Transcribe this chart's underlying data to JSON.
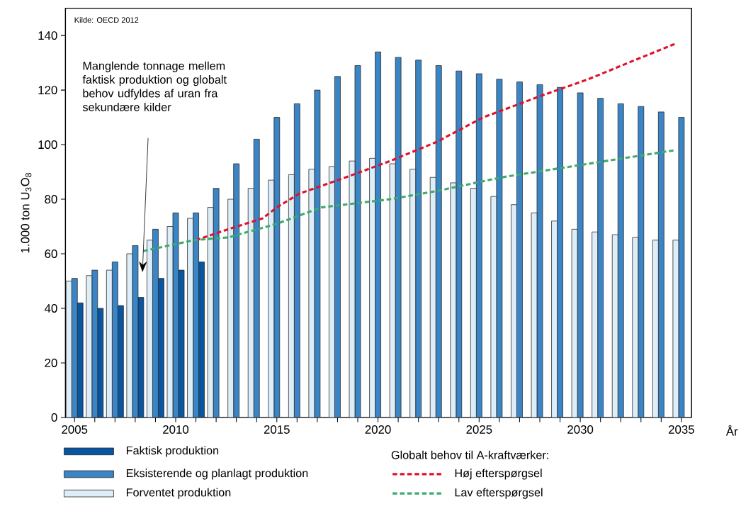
{
  "chart_data": {
    "type": "bar",
    "ylabel": "1.000 ton U$_{3}$O$_{8}$",
    "xlabel": "År",
    "legend_title": "Globalt behov til A-kraftværker:",
    "legend": "bottom",
    "x": [
      2005,
      2006,
      2007,
      2008,
      2009,
      2010,
      2011,
      2012,
      2013,
      2014,
      2015,
      2016,
      2017,
      2018,
      2019,
      2020,
      2021,
      2022,
      2023,
      2024,
      2025,
      2026,
      2027,
      2028,
      2029,
      2030,
      2031,
      2032,
      2033,
      2034,
      2035
    ],
    "xlim": [
      2004.55,
      2035.5
    ],
    "ylim": [
      0,
      150
    ],
    "xticks": [
      2005,
      {
        "value": 2006,
        "label": null
      },
      {
        "value": 2007,
        "label": null
      },
      {
        "value": 2008,
        "label": null
      },
      {
        "value": 2009,
        "label": null
      },
      2010,
      {
        "value": 2011,
        "label": null
      },
      {
        "value": 2012,
        "label": null
      },
      {
        "value": 2013,
        "label": null
      },
      {
        "value": 2014,
        "label": null
      },
      2015,
      {
        "value": 2016,
        "label": null
      },
      {
        "value": 2017,
        "label": null
      },
      {
        "value": 2018,
        "label": null
      },
      {
        "value": 2019,
        "label": null
      },
      2020,
      {
        "value": 2021,
        "label": null
      },
      {
        "value": 2022,
        "label": null
      },
      {
        "value": 2023,
        "label": null
      },
      {
        "value": 2024,
        "label": null
      },
      2025,
      {
        "value": 2026,
        "label": null
      },
      {
        "value": 2027,
        "label": null
      },
      {
        "value": 2028,
        "label": null
      },
      {
        "value": 2029,
        "label": null
      },
      2030,
      {
        "value": 2031,
        "label": null
      },
      {
        "value": 2032,
        "label": null
      },
      {
        "value": 2033,
        "label": null
      },
      {
        "value": 2034,
        "label": null
      },
      2035
    ],
    "yticks": [
      0,
      20,
      40,
      60,
      80,
      100,
      120,
      140
    ],
    "series": [
      {
        "name": "Faktisk produktion",
        "color": "#0a55a0",
        "x": [
          2005,
          2006,
          2007,
          2008,
          2009,
          2010,
          2011
        ],
        "values": [
          42,
          40,
          41,
          44,
          51,
          54,
          57
        ]
      },
      {
        "name": "Eksisterende og planlagt produktion",
        "color": "#3a85c6",
        "values": [
          51,
          54,
          57,
          63,
          69,
          75,
          75,
          84,
          93,
          102,
          110,
          115,
          120,
          125,
          129,
          134,
          132,
          131,
          129,
          127,
          126,
          124,
          123,
          122,
          121,
          119,
          117,
          115,
          114,
          112,
          110
        ]
      },
      {
        "name": "Forventet produktion",
        "color": "#ddeef8",
        "values": [
          50,
          52,
          54,
          60,
          65,
          70,
          73,
          77,
          80,
          84,
          87,
          89,
          91,
          92,
          94,
          95,
          93,
          91,
          88,
          86,
          84,
          81,
          78,
          75,
          72,
          69,
          68,
          67,
          66,
          65,
          65
        ]
      },
      {
        "name": "Høj efterspørgsel",
        "type": "line",
        "color": "#e0112b",
        "line_style": "dashed",
        "x": [
          2011,
          2012.6,
          2014.3,
          2015,
          2016.1,
          2018.4,
          2020.6,
          2022.9,
          2025.2,
          2028.1,
          2030.4,
          2032.7,
          2034.7
        ],
        "values": [
          65,
          69,
          73,
          77,
          82,
          88,
          94,
          101,
          110,
          118,
          124,
          131,
          137
        ]
      },
      {
        "name": "Lav efterspørgsel",
        "type": "line",
        "color": "#3daa6e",
        "line_style": "dashed",
        "x": [
          2008.4,
          2010.9,
          2012.6,
          2015,
          2017.2,
          2020.6,
          2022.9,
          2026.1,
          2030.4,
          2034.7
        ],
        "values": [
          61,
          65,
          66,
          71,
          77,
          80,
          83,
          88,
          93,
          98
        ]
      }
    ],
    "annotations": [
      "Kilde: OECD 2012",
      "Manglende tonnage mellem faktisk produktion og globalt behov udfyldes af uran fra sekundære kilder"
    ]
  }
}
